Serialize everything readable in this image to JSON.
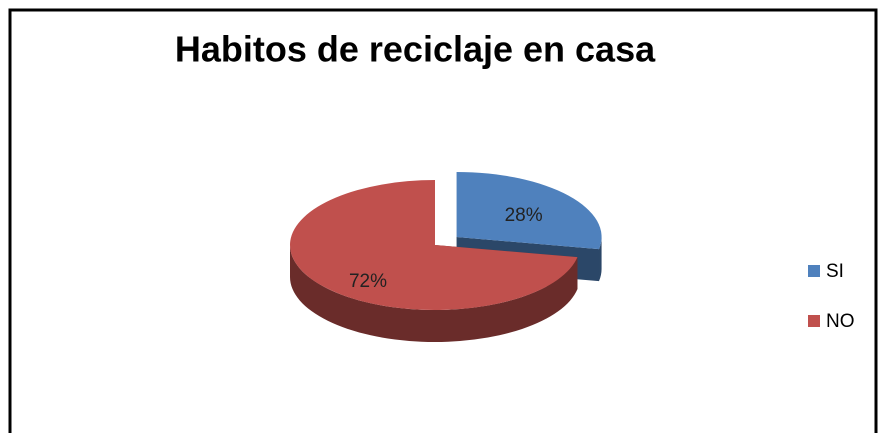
{
  "chart_data": {
    "type": "pie",
    "title": "Habitos de reciclaje en casa",
    "categories": [
      "SI",
      "NO"
    ],
    "values": [
      28,
      72
    ],
    "value_labels": [
      "28%",
      "72%"
    ],
    "colors": [
      "#4f81bd",
      "#c0504d"
    ],
    "exploded": [
      true,
      false
    ],
    "legend": "right"
  }
}
